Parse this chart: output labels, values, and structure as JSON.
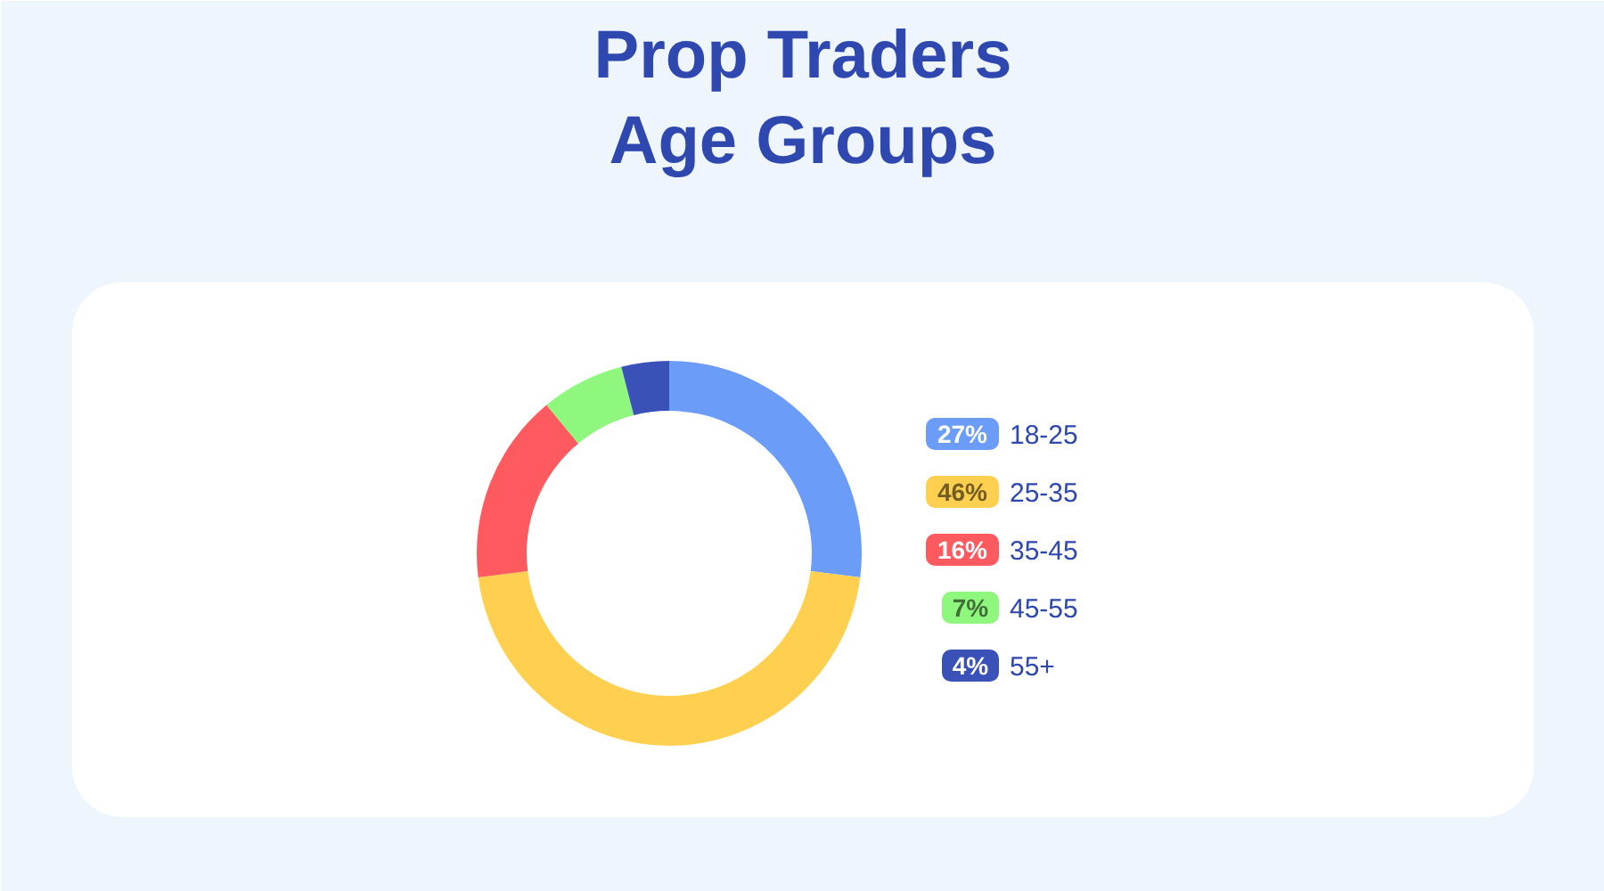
{
  "chart_data": {
    "type": "donut",
    "title": "Prop Traders\nAge Groups",
    "categories": [
      "18-25",
      "25-35",
      "35-45",
      "45-55",
      "55+"
    ],
    "values": [
      27,
      46,
      16,
      7,
      4
    ],
    "colors": [
      "#6b9cf8",
      "#ffd04f",
      "#ff5a60",
      "#8ff77e",
      "#3a52b8"
    ],
    "value_labels": [
      "27%",
      "46%",
      "16%",
      "7%",
      "4%"
    ],
    "legend": "right"
  }
}
